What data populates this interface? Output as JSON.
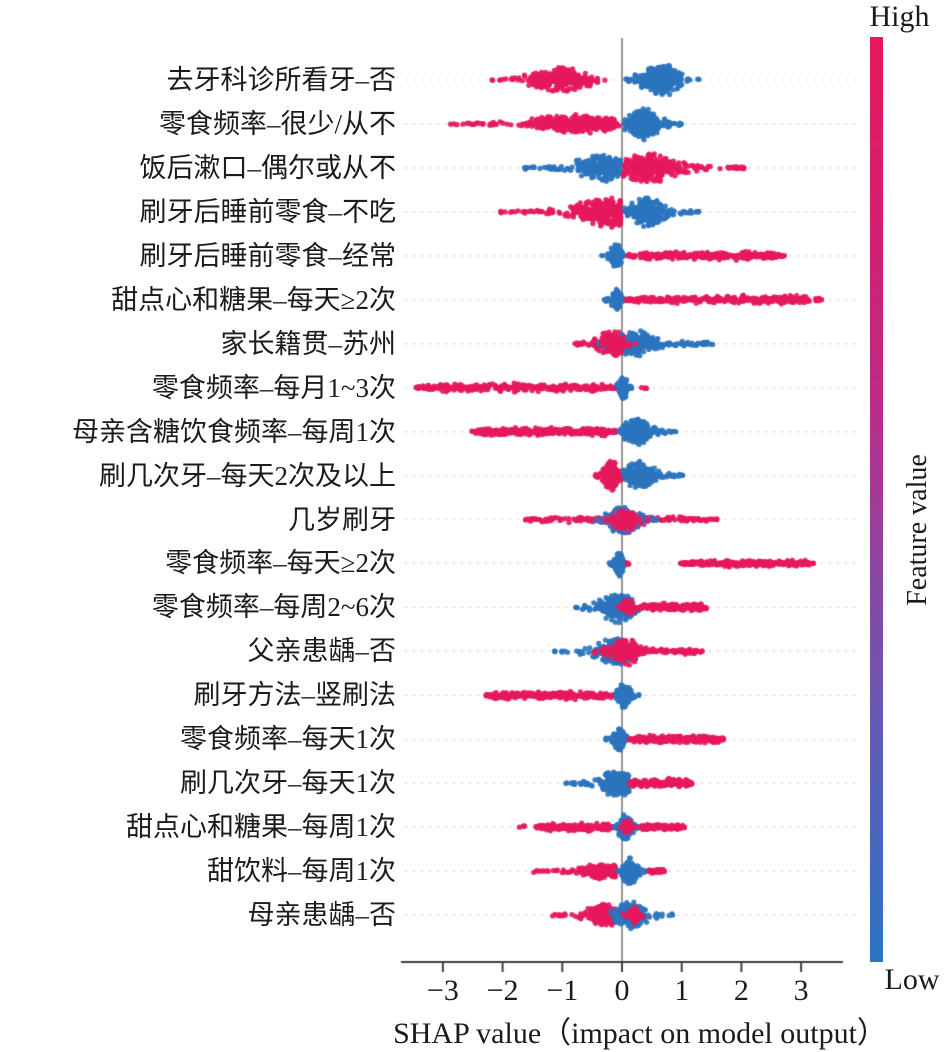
{
  "colors": {
    "red": "#e6195c",
    "blue": "#2b74be",
    "purple": "#8a4a9e",
    "axis": "#3f3f3f",
    "zero_line": "#8a8a8a",
    "grid": "#d8c9cc",
    "text": "#1b1b1b"
  },
  "chart_data": {
    "type": "scatter",
    "subtype": "shap-beeswarm-summary",
    "title": "",
    "xlabel": "SHAP value（impact on model output）",
    "ylabel": "",
    "xtick_labels": [
      "−3",
      "−2",
      "−1",
      "0",
      "1",
      "2",
      "3"
    ],
    "xtick_values": [
      -3,
      -2,
      -1,
      0,
      1,
      2,
      3
    ],
    "xlim": [
      -3.7,
      3.7
    ],
    "grid": "dotted-horizontal-per-feature",
    "legend_position": "right-colorbar",
    "colorbar": {
      "high": "High",
      "low": "Low",
      "label": "Feature value",
      "top_color": "#e8175d",
      "bottom_color": "#2b74be"
    },
    "cluster_fields": [
      "color(r/b/p)",
      "shap_min",
      "shap_max",
      "shap_peak",
      "max_half_thickness_px",
      "n_points",
      "flat_bar(0/1)"
    ],
    "features": [
      {
        "label": "去牙科诊所看牙–否",
        "clusters": [
          [
            "r",
            -2.2,
            -0.28,
            -1.0,
            12,
            260,
            0
          ],
          [
            "b",
            0.06,
            1.3,
            0.66,
            16,
            300,
            0
          ]
        ]
      },
      {
        "label": "零食频率–很少/从不",
        "clusters": [
          [
            "r",
            -2.9,
            -0.05,
            -0.75,
            9,
            330,
            0
          ],
          [
            "b",
            0.02,
            1.0,
            0.36,
            15,
            280,
            0
          ]
        ]
      },
      {
        "label": "饭后漱口–偶尔或从不",
        "clusters": [
          [
            "b",
            -1.72,
            -0.02,
            -0.35,
            13,
            260,
            0
          ],
          [
            "r",
            0.02,
            2.05,
            0.45,
            15,
            320,
            0
          ]
        ]
      },
      {
        "label": "刷牙后睡前零食–不吃",
        "clusters": [
          [
            "r",
            -2.05,
            -0.02,
            -0.28,
            15,
            320,
            0
          ],
          [
            "b",
            0.02,
            1.3,
            0.42,
            14,
            260,
            0
          ]
        ]
      },
      {
        "label": "刷牙后睡前零食–经常",
        "clusters": [
          [
            "b",
            -0.38,
            0.04,
            -0.1,
            11,
            140,
            0
          ],
          [
            "r",
            0.08,
            2.73,
            1.3,
            5,
            300,
            1
          ]
        ]
      },
      {
        "label": "甜点心和糖果–每天≥2次",
        "clusters": [
          [
            "b",
            -0.3,
            0.04,
            -0.08,
            10,
            120,
            0
          ],
          [
            "r",
            0.06,
            3.35,
            1.6,
            5,
            320,
            1
          ]
        ]
      },
      {
        "label": "家长籍贯–苏州",
        "clusters": [
          [
            "r",
            -0.8,
            0.4,
            -0.12,
            13,
            210,
            0
          ],
          [
            "b",
            -0.45,
            0.8,
            0.22,
            13,
            210,
            0
          ],
          [
            "b",
            0.7,
            1.55,
            1.0,
            3,
            40,
            1
          ],
          [
            "r",
            -0.5,
            0.3,
            -0.1,
            10,
            70,
            0
          ]
        ]
      },
      {
        "label": "零食频率–每月1~3次",
        "clusters": [
          [
            "r",
            -3.45,
            -0.08,
            -1.3,
            5,
            320,
            1
          ],
          [
            "b",
            -0.1,
            0.18,
            0.02,
            11,
            120,
            0
          ],
          [
            "r",
            0.32,
            0.42,
            0.37,
            2,
            4,
            1
          ]
        ]
      },
      {
        "label": "母亲含糖饮食频率–每周1次",
        "clusters": [
          [
            "r",
            -2.52,
            -0.1,
            -0.9,
            5,
            300,
            1
          ],
          [
            "b",
            -0.06,
            0.92,
            0.22,
            13,
            230,
            0
          ]
        ]
      },
      {
        "label": "刷几次牙–每天2次及以上",
        "clusters": [
          [
            "r",
            -0.48,
            0.02,
            -0.18,
            15,
            230,
            0
          ],
          [
            "b",
            0.02,
            1.02,
            0.3,
            14,
            240,
            0
          ]
        ]
      },
      {
        "label": "几岁刷牙",
        "clusters": [
          [
            "r",
            -1.62,
            1.62,
            0.0,
            4,
            170,
            1
          ],
          [
            "b",
            -0.5,
            0.58,
            0.02,
            15,
            230,
            0
          ],
          [
            "p",
            -0.42,
            0.6,
            0.08,
            13,
            130,
            0
          ],
          [
            "r",
            -0.35,
            0.5,
            0.05,
            10,
            80,
            0
          ]
        ]
      },
      {
        "label": "零食频率–每天≥2次",
        "clusters": [
          [
            "b",
            -0.22,
            0.08,
            -0.05,
            12,
            130,
            0
          ],
          [
            "r",
            0.08,
            0.16,
            0.11,
            2,
            4,
            1
          ],
          [
            "r",
            0.98,
            3.22,
            2.0,
            4,
            280,
            1
          ]
        ]
      },
      {
        "label": "零食频率–每周2~6次",
        "clusters": [
          [
            "b",
            -0.78,
            0.35,
            -0.08,
            15,
            270,
            0
          ],
          [
            "r",
            -0.12,
            0.3,
            0.1,
            8,
            60,
            0
          ],
          [
            "r",
            0.3,
            1.42,
            0.7,
            5,
            160,
            1
          ]
        ]
      },
      {
        "label": "父亲患龋–否",
        "clusters": [
          [
            "b",
            -1.15,
            0.3,
            -0.12,
            14,
            230,
            0
          ],
          [
            "r",
            -0.5,
            0.55,
            0.08,
            13,
            190,
            0
          ],
          [
            "r",
            0.55,
            1.35,
            0.9,
            3,
            60,
            1
          ]
        ]
      },
      {
        "label": "刷牙方法–竖刷法",
        "clusters": [
          [
            "r",
            -2.28,
            -0.12,
            -0.9,
            5,
            280,
            1
          ],
          [
            "b",
            -0.12,
            0.3,
            0.02,
            12,
            150,
            0
          ]
        ]
      },
      {
        "label": "零食频率–每天1次",
        "clusters": [
          [
            "b",
            -0.3,
            0.1,
            -0.05,
            12,
            140,
            0
          ],
          [
            "r",
            0.12,
            1.72,
            0.8,
            5,
            240,
            1
          ]
        ]
      },
      {
        "label": "刷几次牙–每天1次",
        "clusters": [
          [
            "b",
            -0.95,
            0.12,
            -0.08,
            13,
            240,
            0
          ],
          [
            "r",
            0.12,
            1.18,
            0.6,
            5,
            200,
            1
          ]
        ]
      },
      {
        "label": "甜点心和糖果–每周1次",
        "clusters": [
          [
            "r",
            -1.72,
            -1.62,
            -1.67,
            2,
            4,
            1
          ],
          [
            "r",
            -1.45,
            -0.15,
            -0.6,
            5,
            180,
            1
          ],
          [
            "b",
            -0.18,
            0.3,
            0.05,
            12,
            150,
            0
          ],
          [
            "r",
            -0.1,
            0.28,
            0.1,
            7,
            40,
            0
          ],
          [
            "r",
            0.3,
            1.05,
            0.6,
            4,
            110,
            1
          ]
        ]
      },
      {
        "label": "甜饮料–每周1次",
        "clusters": [
          [
            "r",
            -1.5,
            -0.1,
            -0.35,
            7,
            210,
            0
          ],
          [
            "b",
            -0.08,
            0.45,
            0.12,
            13,
            170,
            0
          ],
          [
            "r",
            0.45,
            0.72,
            0.55,
            3,
            40,
            1
          ]
        ]
      },
      {
        "label": "母亲患龋–否",
        "clusters": [
          [
            "r",
            -1.18,
            -0.02,
            -0.3,
            11,
            210,
            0
          ],
          [
            "b",
            -0.2,
            0.85,
            0.15,
            13,
            210,
            0
          ],
          [
            "r",
            0.0,
            0.42,
            0.2,
            8,
            50,
            0
          ]
        ]
      }
    ]
  }
}
